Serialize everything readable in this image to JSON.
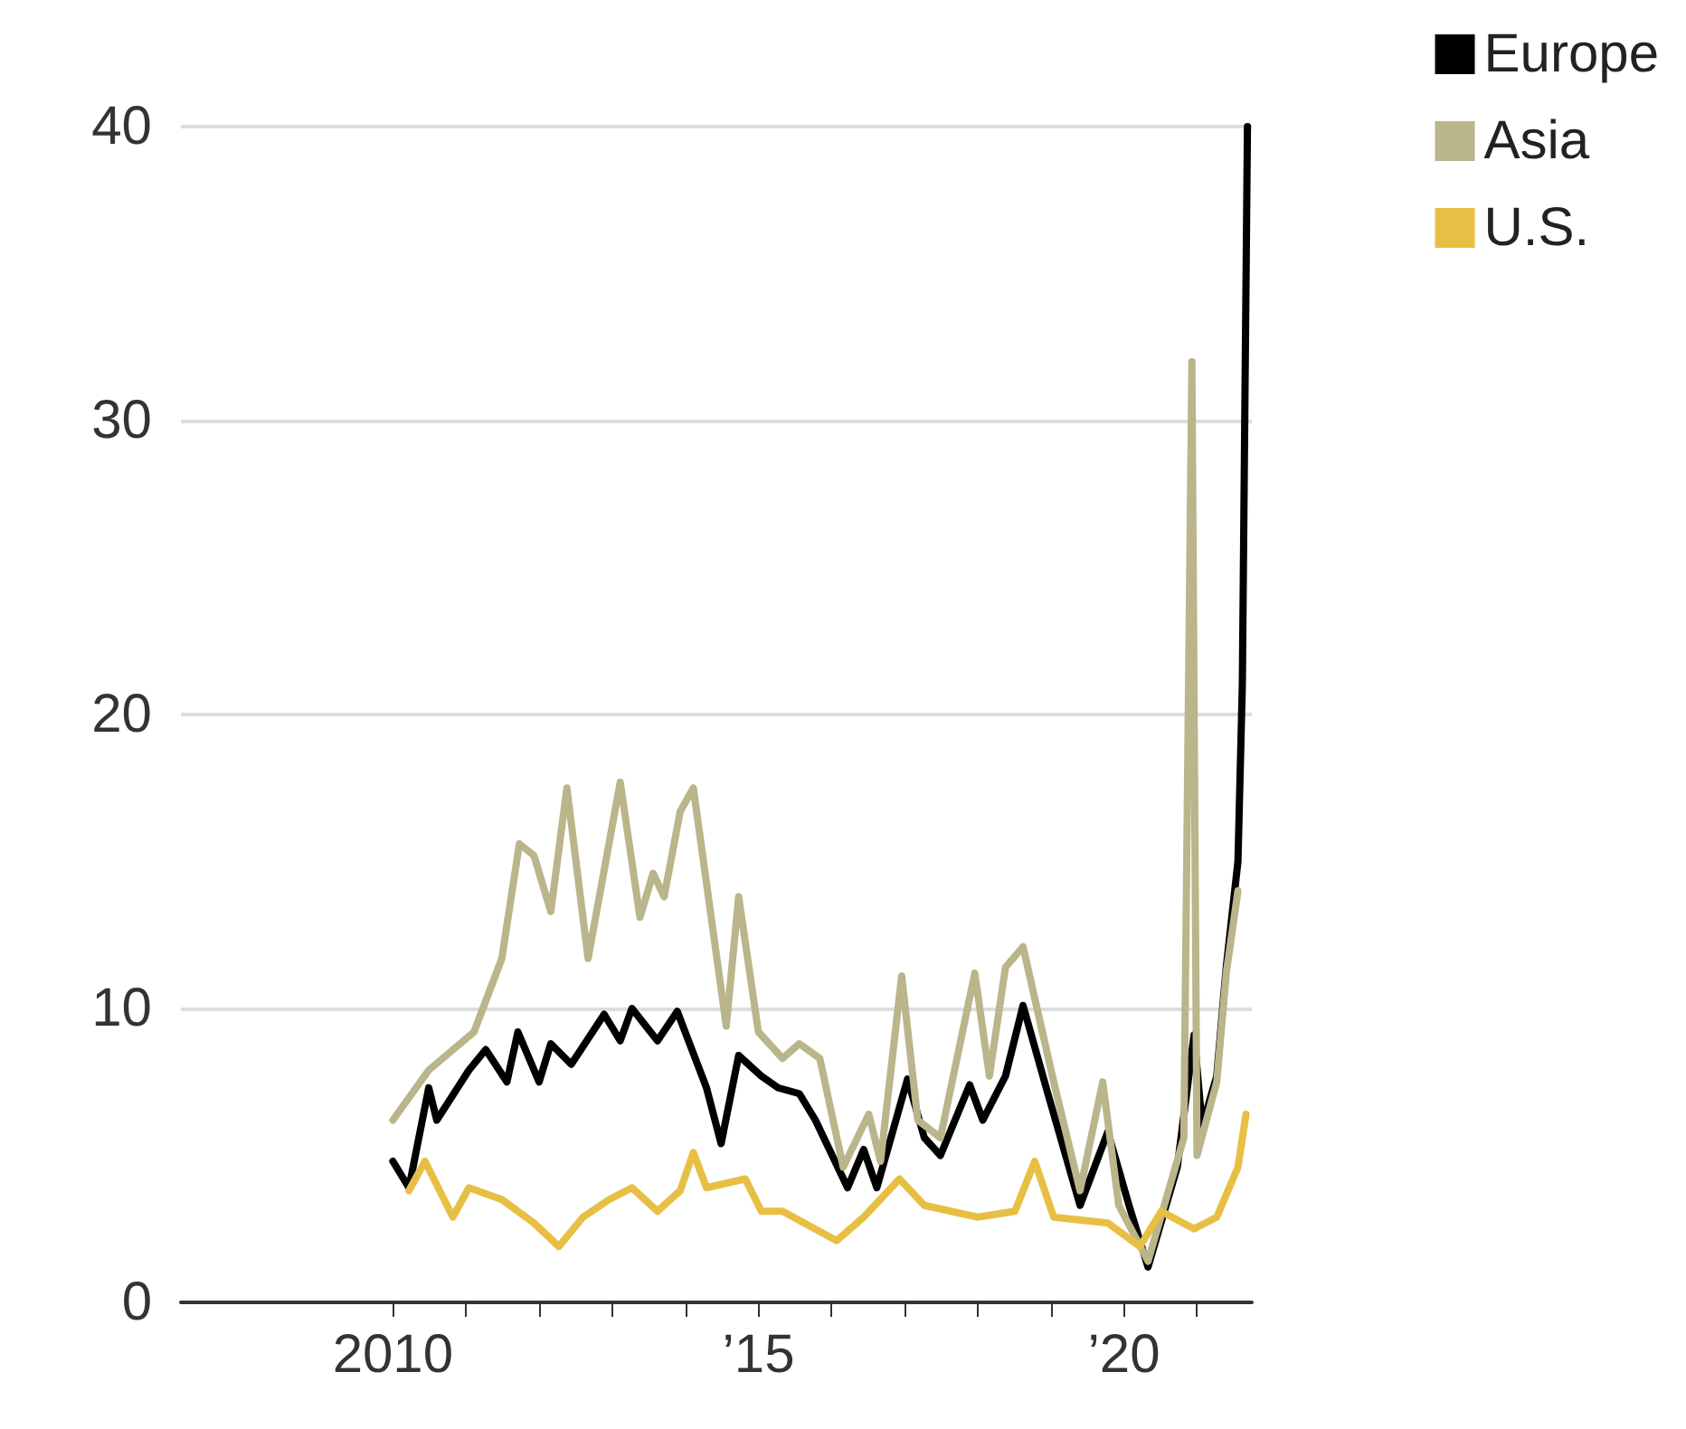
{
  "chart_data": {
    "type": "line",
    "xlim": [
      2007.1,
      2021.75
    ],
    "xticks": [
      {
        "value": 2010,
        "label": "2010"
      },
      {
        "value": 2011,
        "label": null
      },
      {
        "value": 2012,
        "label": null
      },
      {
        "value": 2013,
        "label": null
      },
      {
        "value": 2014,
        "label": null
      },
      {
        "value": 2015,
        "label": "’15"
      },
      {
        "value": 2016,
        "label": null
      },
      {
        "value": 2017,
        "label": null
      },
      {
        "value": 2018,
        "label": null
      },
      {
        "value": 2019,
        "label": null
      },
      {
        "value": 2020,
        "label": "’20"
      },
      {
        "value": 2021,
        "label": null
      }
    ],
    "ylim": [
      0,
      40
    ],
    "yticks": [
      0,
      10,
      20,
      30,
      40
    ],
    "grid": "y",
    "legend": "top right",
    "marker": "none",
    "line_style": "solid",
    "series": [
      {
        "name": "Europe",
        "color": "#000000",
        "x": [
          2010.0,
          2010.22,
          2010.49,
          2010.6,
          2011.04,
          2011.27,
          2011.56,
          2011.71,
          2012.0,
          2012.16,
          2012.44,
          2012.89,
          2013.11,
          2013.27,
          2013.62,
          2013.89,
          2014.29,
          2014.49,
          2014.73,
          2015.04,
          2015.27,
          2015.56,
          2015.78,
          2016.22,
          2016.44,
          2016.62,
          2017.04,
          2017.27,
          2017.49,
          2017.89,
          2018.07,
          2018.38,
          2018.62,
          2018.96,
          2019.4,
          2019.78,
          2020.07,
          2020.33,
          2020.73,
          2020.96,
          2021.07,
          2021.27,
          2021.4,
          2021.56,
          2021.62,
          2021.69
        ],
        "values": [
          4.8,
          3.9,
          7.3,
          6.2,
          7.9,
          8.6,
          7.5,
          9.2,
          7.5,
          8.8,
          8.1,
          9.8,
          8.9,
          10.0,
          8.9,
          9.9,
          7.3,
          5.4,
          8.4,
          7.7,
          7.3,
          7.1,
          6.2,
          3.9,
          5.2,
          3.9,
          7.6,
          5.6,
          5.0,
          7.4,
          6.2,
          7.7,
          10.1,
          7.1,
          3.3,
          5.8,
          3.3,
          1.2,
          4.6,
          9.1,
          6.0,
          7.7,
          11.4,
          15.0,
          21.0,
          40.0
        ]
      },
      {
        "name": "Asia",
        "color": "#bab58a",
        "x": [
          2010.0,
          2010.49,
          2011.11,
          2011.49,
          2011.73,
          2011.93,
          2012.16,
          2012.38,
          2012.67,
          2013.11,
          2013.38,
          2013.56,
          2013.71,
          2013.93,
          2014.11,
          2014.56,
          2014.73,
          2015.0,
          2015.33,
          2015.56,
          2015.84,
          2016.16,
          2016.51,
          2016.67,
          2016.96,
          2017.18,
          2017.49,
          2017.96,
          2018.16,
          2018.38,
          2018.62,
          2019.04,
          2019.4,
          2019.71,
          2019.93,
          2020.33,
          2020.82,
          2020.93,
          2021.0,
          2021.27,
          2021.4,
          2021.56
        ],
        "values": [
          6.2,
          7.9,
          9.2,
          11.7,
          15.6,
          15.2,
          13.3,
          17.5,
          11.7,
          17.7,
          13.1,
          14.6,
          13.8,
          16.7,
          17.5,
          9.4,
          13.8,
          9.2,
          8.3,
          8.8,
          8.3,
          4.6,
          6.4,
          4.8,
          11.1,
          6.2,
          5.6,
          11.2,
          7.7,
          11.4,
          12.1,
          7.5,
          3.8,
          7.5,
          3.3,
          1.4,
          5.6,
          32.0,
          5.0,
          7.5,
          11.2,
          14.0
        ]
      },
      {
        "name": "U.S.",
        "color": "#e8bf45",
        "x": [
          2010.22,
          2010.44,
          2010.82,
          2011.04,
          2011.49,
          2011.93,
          2012.27,
          2012.6,
          2012.96,
          2013.27,
          2013.62,
          2013.93,
          2014.11,
          2014.29,
          2014.82,
          2015.04,
          2015.33,
          2016.07,
          2016.44,
          2016.93,
          2017.27,
          2018.0,
          2018.51,
          2018.78,
          2019.04,
          2019.78,
          2020.22,
          2020.51,
          2020.96,
          2021.27,
          2021.56,
          2021.67
        ],
        "values": [
          3.8,
          4.8,
          2.9,
          3.9,
          3.5,
          2.7,
          1.9,
          2.9,
          3.5,
          3.9,
          3.1,
          3.8,
          5.1,
          3.9,
          4.2,
          3.1,
          3.1,
          2.1,
          2.9,
          4.2,
          3.3,
          2.9,
          3.1,
          4.8,
          2.9,
          2.7,
          1.9,
          3.1,
          2.5,
          2.9,
          4.6,
          6.4
        ]
      }
    ]
  }
}
